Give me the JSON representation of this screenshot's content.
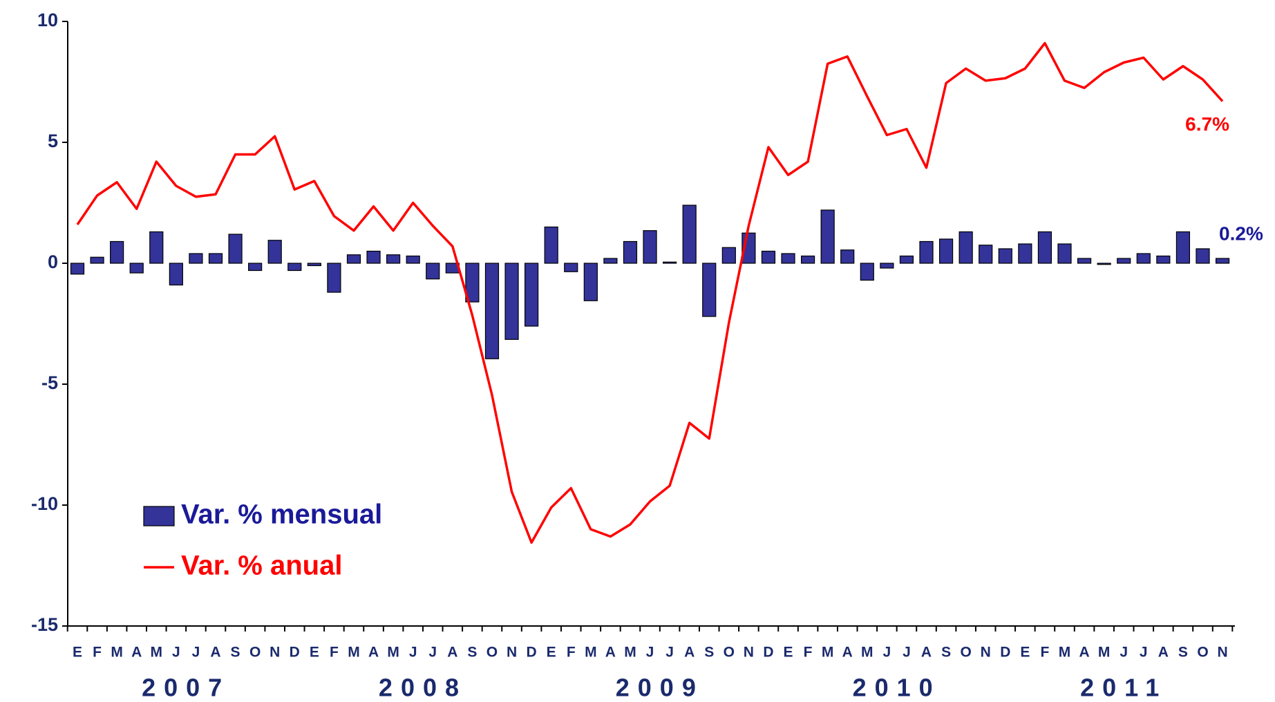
{
  "chart_data": {
    "type": "bar_line",
    "categories": [
      "E",
      "F",
      "M",
      "A",
      "M",
      "J",
      "J",
      "A",
      "S",
      "O",
      "N",
      "D",
      "E",
      "F",
      "M",
      "A",
      "M",
      "J",
      "J",
      "A",
      "S",
      "O",
      "N",
      "D",
      "E",
      "F",
      "M",
      "A",
      "M",
      "J",
      "J",
      "A",
      "S",
      "O",
      "N",
      "D",
      "E",
      "F",
      "M",
      "A",
      "M",
      "J",
      "J",
      "A",
      "S",
      "O",
      "N",
      "D",
      "E",
      "F",
      "M",
      "A",
      "M",
      "J",
      "J",
      "A",
      "S",
      "O",
      "N"
    ],
    "year_labels": [
      "2007",
      "2008",
      "2009",
      "2010",
      "2011"
    ],
    "ylim": [
      -15,
      10
    ],
    "yticks": [
      -15,
      -10,
      -5,
      0,
      5,
      10
    ],
    "legend": "lower left",
    "series": [
      {
        "name": "Var. % mensual",
        "type": "bar",
        "color": "#333399",
        "values": [
          -0.45,
          0.25,
          0.9,
          -0.4,
          1.3,
          -0.9,
          0.4,
          0.4,
          1.2,
          -0.3,
          0.95,
          -0.3,
          -0.1,
          -1.2,
          0.35,
          0.5,
          0.35,
          0.3,
          -0.65,
          -0.4,
          -1.6,
          -3.95,
          -3.15,
          -2.6,
          1.5,
          -0.35,
          -1.55,
          0.2,
          0.9,
          1.35,
          0.05,
          2.4,
          -2.2,
          0.65,
          1.25,
          0.5,
          0.4,
          0.3,
          2.2,
          0.55,
          -0.7,
          -0.2,
          0.3,
          0.9,
          1.0,
          1.3,
          0.75,
          0.6,
          0.8,
          1.3,
          0.8,
          0.2,
          -0.05,
          0.2,
          0.4,
          0.3,
          1.3,
          0.6,
          0.2
        ],
        "value_labels": [
          null,
          null,
          null,
          null,
          null,
          null,
          null,
          null,
          null,
          null,
          null,
          null,
          null,
          null,
          null,
          null,
          null,
          null,
          null,
          null,
          null,
          null,
          null,
          null,
          null,
          null,
          null,
          null,
          null,
          null,
          null,
          null,
          null,
          null,
          null,
          null,
          null,
          null,
          null,
          null,
          null,
          null,
          null,
          null,
          null,
          null,
          null,
          null,
          null,
          null,
          null,
          null,
          null,
          null,
          null,
          null,
          null,
          null,
          "0.2%"
        ]
      },
      {
        "name": "Var. % anual",
        "type": "line",
        "color": "#ff0000",
        "values": [
          1.6,
          2.8,
          3.35,
          2.25,
          4.2,
          3.2,
          2.75,
          2.85,
          4.5,
          4.5,
          5.25,
          3.05,
          3.4,
          1.95,
          1.35,
          2.35,
          1.35,
          2.5,
          1.55,
          0.7,
          -2.15,
          -5.45,
          -9.45,
          -11.55,
          -10.1,
          -9.3,
          -11.0,
          -11.3,
          -10.8,
          -9.85,
          -9.2,
          -6.6,
          -7.25,
          -2.45,
          1.55,
          4.8,
          3.65,
          4.2,
          8.25,
          8.55,
          6.9,
          5.3,
          5.55,
          3.95,
          7.45,
          8.05,
          7.55,
          7.65,
          8.05,
          9.1,
          7.55,
          7.25,
          7.9,
          8.3,
          8.5,
          7.6,
          8.15,
          7.6,
          6.7
        ],
        "value_labels": [
          null,
          null,
          null,
          null,
          null,
          null,
          null,
          null,
          null,
          null,
          null,
          null,
          null,
          null,
          null,
          null,
          null,
          null,
          null,
          null,
          null,
          null,
          null,
          null,
          null,
          null,
          null,
          null,
          null,
          null,
          null,
          null,
          null,
          null,
          null,
          null,
          null,
          null,
          null,
          null,
          null,
          null,
          null,
          null,
          null,
          null,
          null,
          null,
          null,
          null,
          null,
          null,
          null,
          null,
          null,
          null,
          null,
          null,
          "6.7%"
        ]
      }
    ]
  }
}
